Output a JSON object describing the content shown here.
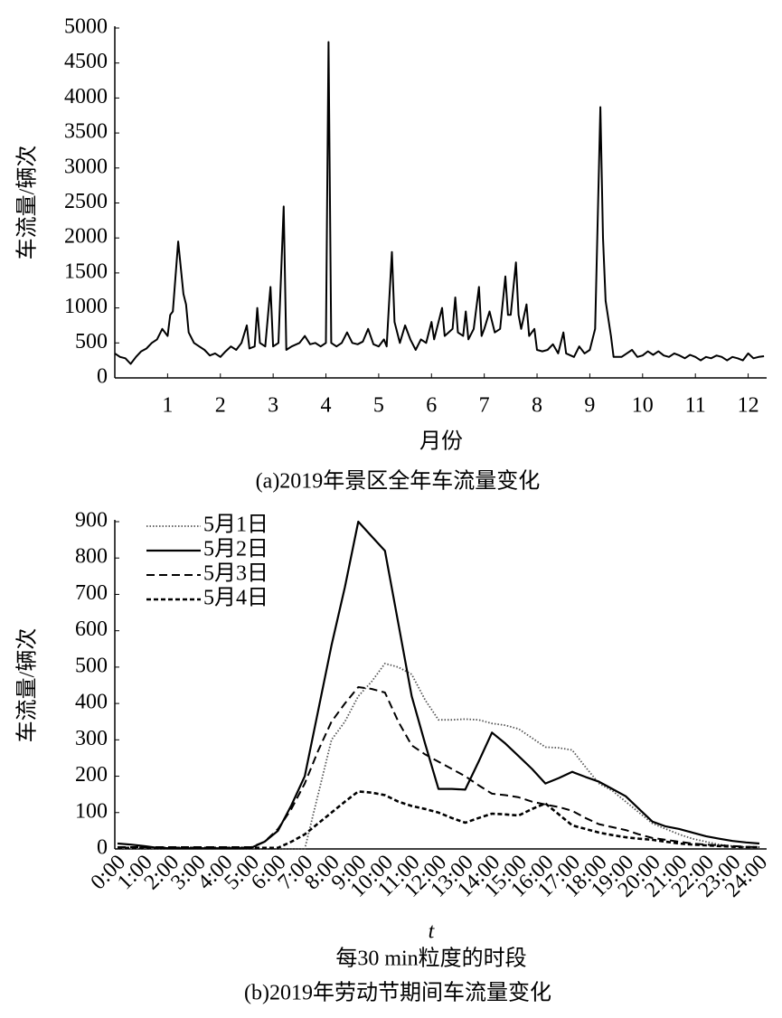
{
  "chart_data": [
    {
      "type": "line",
      "ylabel": "车流量/辆次",
      "xlabel": "月份",
      "caption": "(a)2019年景区全年车流量变化",
      "color": "#000000",
      "xlim": [
        0,
        12.35
      ],
      "xticks": [
        1,
        2,
        3,
        4,
        5,
        6,
        7,
        8,
        9,
        10,
        11,
        12
      ],
      "ylim": [
        0,
        5000
      ],
      "yticks": [
        0,
        500,
        1000,
        1500,
        2000,
        2500,
        3000,
        3500,
        4000,
        4500,
        5000
      ],
      "x": [
        0.0,
        0.1,
        0.2,
        0.3,
        0.4,
        0.5,
        0.6,
        0.7,
        0.8,
        0.9,
        1.0,
        1.05,
        1.1,
        1.2,
        1.3,
        1.35,
        1.4,
        1.5,
        1.6,
        1.7,
        1.8,
        1.9,
        2.0,
        2.1,
        2.2,
        2.3,
        2.4,
        2.5,
        2.55,
        2.65,
        2.7,
        2.75,
        2.85,
        2.95,
        3.0,
        3.1,
        3.2,
        3.25,
        3.35,
        3.5,
        3.6,
        3.7,
        3.8,
        3.9,
        4.0,
        4.05,
        4.1,
        4.2,
        4.3,
        4.4,
        4.5,
        4.6,
        4.7,
        4.8,
        4.9,
        5.0,
        5.1,
        5.15,
        5.25,
        5.3,
        5.4,
        5.5,
        5.6,
        5.7,
        5.8,
        5.9,
        6.0,
        6.05,
        6.2,
        6.25,
        6.4,
        6.45,
        6.5,
        6.6,
        6.65,
        6.7,
        6.8,
        6.9,
        6.95,
        7.0,
        7.1,
        7.2,
        7.3,
        7.4,
        7.45,
        7.5,
        7.6,
        7.65,
        7.7,
        7.8,
        7.85,
        7.95,
        8.0,
        8.1,
        8.2,
        8.3,
        8.4,
        8.5,
        8.55,
        8.7,
        8.8,
        8.9,
        9.0,
        9.1,
        9.2,
        9.25,
        9.3,
        9.4,
        9.45,
        9.6,
        9.7,
        9.8,
        9.9,
        10.0,
        10.1,
        10.2,
        10.3,
        10.4,
        10.5,
        10.6,
        10.7,
        10.8,
        10.9,
        11.0,
        11.1,
        11.2,
        11.3,
        11.4,
        11.5,
        11.6,
        11.7,
        11.8,
        11.9,
        12.0,
        12.1,
        12.2,
        12.3
      ],
      "values": [
        350,
        300,
        280,
        200,
        300,
        380,
        420,
        500,
        550,
        700,
        600,
        900,
        950,
        1950,
        1200,
        1050,
        650,
        500,
        450,
        400,
        320,
        350,
        300,
        380,
        450,
        400,
        500,
        750,
        420,
        450,
        1000,
        500,
        450,
        1300,
        450,
        500,
        2450,
        400,
        450,
        500,
        600,
        480,
        500,
        450,
        500,
        4800,
        500,
        450,
        500,
        650,
        500,
        480,
        520,
        700,
        480,
        450,
        550,
        450,
        1800,
        800,
        500,
        750,
        550,
        400,
        550,
        500,
        800,
        550,
        1000,
        600,
        700,
        1150,
        650,
        600,
        950,
        550,
        700,
        1300,
        600,
        700,
        950,
        650,
        700,
        1450,
        900,
        900,
        1650,
        900,
        700,
        1050,
        600,
        700,
        400,
        380,
        400,
        480,
        350,
        650,
        350,
        300,
        450,
        350,
        400,
        700,
        3870,
        2000,
        1100,
        600,
        300,
        300,
        350,
        400,
        300,
        320,
        380,
        330,
        380,
        320,
        300,
        350,
        320,
        280,
        330,
        300,
        250,
        300,
        280,
        320,
        300,
        250,
        300,
        280,
        250,
        350,
        280,
        300,
        310
      ]
    },
    {
      "type": "line",
      "ylabel": "车流量/辆次",
      "xlabel": "t",
      "xlabel_note": "每30 min粒度的时段",
      "caption": "(b)2019年劳动节期间车流量变化",
      "ylim": [
        0,
        900
      ],
      "yticks": [
        0,
        100,
        200,
        300,
        400,
        500,
        600,
        700,
        800,
        900
      ],
      "legend": "upper left",
      "categories": [
        "0:00",
        null,
        "1:00",
        null,
        "2:00",
        null,
        "3:00",
        null,
        "4:00",
        null,
        "5:00",
        null,
        "6:00",
        null,
        "7:00",
        null,
        "8:00",
        null,
        "9:00",
        null,
        "10:00",
        null,
        "11:00",
        null,
        "12:00",
        null,
        "13:00",
        null,
        "14:00",
        null,
        "15:00",
        null,
        "16:00",
        null,
        "17:00",
        null,
        "18:00",
        null,
        "19:00",
        null,
        "20:00",
        null,
        "21:00",
        null,
        "22:00",
        null,
        "23:00",
        null,
        "24:00"
      ],
      "series": [
        {
          "name": "5月1日",
          "color": "#555555",
          "dash": "dotted",
          "values": [
            0,
            0,
            0,
            0,
            0,
            0,
            0,
            0,
            0,
            0,
            0,
            0,
            0,
            0,
            0,
            150,
            300,
            350,
            420,
            460,
            510,
            500,
            480,
            410,
            355,
            355,
            357,
            355,
            345,
            340,
            330,
            305,
            280,
            278,
            272,
            225,
            180,
            160,
            130,
            100,
            70,
            55,
            40,
            28,
            20,
            12,
            8,
            5,
            5
          ]
        },
        {
          "name": "5月2日",
          "color": "#000000",
          "dash": "solid",
          "values": [
            15,
            12,
            8,
            3,
            2,
            2,
            2,
            2,
            2,
            2,
            3,
            20,
            50,
            120,
            200,
            380,
            560,
            720,
            900,
            860,
            820,
            620,
            420,
            290,
            165,
            165,
            163,
            240,
            320,
            290,
            255,
            220,
            180,
            195,
            212,
            198,
            185,
            165,
            145,
            110,
            75,
            62,
            55,
            45,
            35,
            28,
            22,
            18,
            15
          ]
        },
        {
          "name": "5月3日",
          "color": "#000000",
          "dash": "dashed",
          "values": [
            5,
            5,
            5,
            5,
            5,
            5,
            5,
            5,
            5,
            5,
            5,
            20,
            55,
            110,
            180,
            270,
            350,
            400,
            445,
            440,
            430,
            350,
            285,
            260,
            240,
            220,
            200,
            175,
            152,
            148,
            142,
            130,
            122,
            115,
            105,
            85,
            68,
            60,
            52,
            40,
            30,
            25,
            20,
            15,
            12,
            10,
            8,
            6,
            5
          ]
        },
        {
          "name": "5月4日",
          "color": "#000000",
          "dash": "short-dashed",
          "values": [
            3,
            3,
            3,
            3,
            3,
            3,
            3,
            3,
            3,
            3,
            3,
            3,
            3,
            20,
            40,
            70,
            100,
            130,
            158,
            155,
            148,
            130,
            118,
            110,
            100,
            85,
            72,
            85,
            97,
            95,
            92,
            110,
            125,
            95,
            65,
            55,
            45,
            38,
            32,
            28,
            25,
            20,
            15,
            12,
            10,
            8,
            6,
            5,
            5
          ]
        }
      ]
    }
  ]
}
